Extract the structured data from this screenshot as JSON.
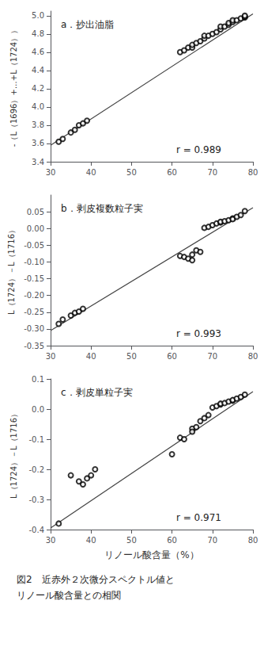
{
  "chart_data": [
    {
      "type": "scatter",
      "title": "a．抄出油脂",
      "ylabel": "-（L（1696）+…+L（1724））",
      "annotations": [
        "r = 0.989"
      ],
      "xlim": [
        30,
        80
      ],
      "xticks": [
        30,
        40,
        50,
        60,
        70,
        80
      ],
      "ylim": [
        3.4,
        5.05
      ],
      "yticks": [
        3.4,
        3.6,
        3.8,
        {
          "value": 4.0,
          "label": "4.0"
        },
        4.2,
        4.4,
        4.6,
        4.8,
        {
          "value": 5.0,
          "label": "5.0"
        }
      ],
      "grid": false,
      "series": [
        {
          "type": "scatter",
          "marker": "hollow",
          "color": "#000000",
          "x": [
            32,
            33,
            35,
            36,
            37,
            38,
            39,
            62,
            63,
            64,
            65,
            65,
            66,
            67,
            68,
            68,
            69,
            70,
            71,
            72,
            72,
            73,
            74,
            74,
            75,
            75,
            76,
            77,
            78,
            78,
            78
          ],
          "values": [
            3.62,
            3.65,
            3.72,
            3.75,
            3.8,
            3.82,
            3.85,
            4.6,
            4.62,
            4.65,
            4.65,
            4.68,
            4.7,
            4.72,
            4.75,
            4.78,
            4.78,
            4.8,
            4.82,
            4.85,
            4.88,
            4.88,
            4.9,
            4.92,
            4.93,
            4.95,
            4.95,
            4.97,
            4.98,
            4.99,
            5.0
          ]
        },
        {
          "type": "line",
          "line_style": "solid",
          "color": "#444444",
          "x": [
            30,
            80
          ],
          "values": [
            3.58,
            5.02
          ]
        }
      ]
    },
    {
      "type": "scatter",
      "title": "b．剥皮複数粒子実",
      "ylabel": "L（1724）－L（1716）",
      "annotations": [
        "r = 0.993"
      ],
      "xlim": [
        30,
        80
      ],
      "xticks": [
        30,
        40,
        50,
        60,
        70,
        80
      ],
      "ylim": [
        -0.35,
        0.1
      ],
      "yticks": [
        -0.35,
        {
          "value": -0.3,
          "label": "-0.30"
        },
        -0.25,
        {
          "value": -0.2,
          "label": "-0.20"
        },
        -0.15,
        {
          "value": -0.1,
          "label": "-0.10"
        },
        -0.05,
        {
          "value": 0.0,
          "label": "0.00"
        },
        0.05
      ],
      "grid": false,
      "series": [
        {
          "type": "scatter",
          "marker": "hollow",
          "color": "#000000",
          "x": [
            32,
            33,
            35,
            36,
            37,
            38,
            62,
            63,
            64,
            65,
            65,
            66,
            67,
            68,
            69,
            70,
            71,
            72,
            72,
            73,
            74,
            75,
            75,
            76,
            77,
            78
          ],
          "values": [
            -0.285,
            -0.272,
            -0.26,
            -0.252,
            -0.248,
            -0.24,
            -0.082,
            -0.085,
            -0.09,
            -0.078,
            -0.095,
            -0.065,
            -0.07,
            0.002,
            0.005,
            0.01,
            0.015,
            0.018,
            0.02,
            0.022,
            0.025,
            0.03,
            0.028,
            0.035,
            0.04,
            0.052
          ]
        },
        {
          "type": "line",
          "line_style": "solid",
          "color": "#444444",
          "x": [
            30,
            80
          ],
          "values": [
            -0.305,
            0.062
          ]
        }
      ]
    },
    {
      "type": "scatter",
      "title": "c．剥皮単粒子実",
      "ylabel": "L（1724）－L（1716）",
      "xlabel": "リノール酸含量（%）",
      "annotations": [
        "r = 0.971"
      ],
      "xlim": [
        30,
        80
      ],
      "xticks": [
        30,
        40,
        50,
        60,
        70,
        80
      ],
      "ylim": [
        -0.4,
        0.1
      ],
      "yticks": [
        -0.4,
        -0.3,
        -0.2,
        -0.1,
        {
          "value": 0.0,
          "label": "0.0"
        },
        0.1
      ],
      "grid": false,
      "series": [
        {
          "type": "scatter",
          "marker": "hollow",
          "color": "#000000",
          "x": [
            32,
            35,
            37,
            38,
            39,
            40,
            41,
            60,
            62,
            63,
            65,
            65,
            66,
            67,
            68,
            69,
            70,
            71,
            72,
            72,
            73,
            74,
            75,
            75,
            76,
            77,
            78
          ],
          "values": [
            -0.38,
            -0.22,
            -0.24,
            -0.25,
            -0.23,
            -0.22,
            -0.2,
            -0.15,
            -0.095,
            -0.1,
            -0.065,
            -0.075,
            -0.06,
            -0.04,
            -0.03,
            -0.02,
            0.005,
            0.01,
            0.015,
            0.018,
            0.02,
            0.025,
            0.028,
            0.03,
            0.035,
            0.04,
            0.048
          ]
        },
        {
          "type": "line",
          "line_style": "solid",
          "color": "#444444",
          "x": [
            30,
            80
          ],
          "values": [
            -0.395,
            0.058
          ]
        }
      ]
    }
  ],
  "caption": [
    "図2　近赤外２次微分スペクトル値と",
    "リノール酸含量との相関"
  ]
}
